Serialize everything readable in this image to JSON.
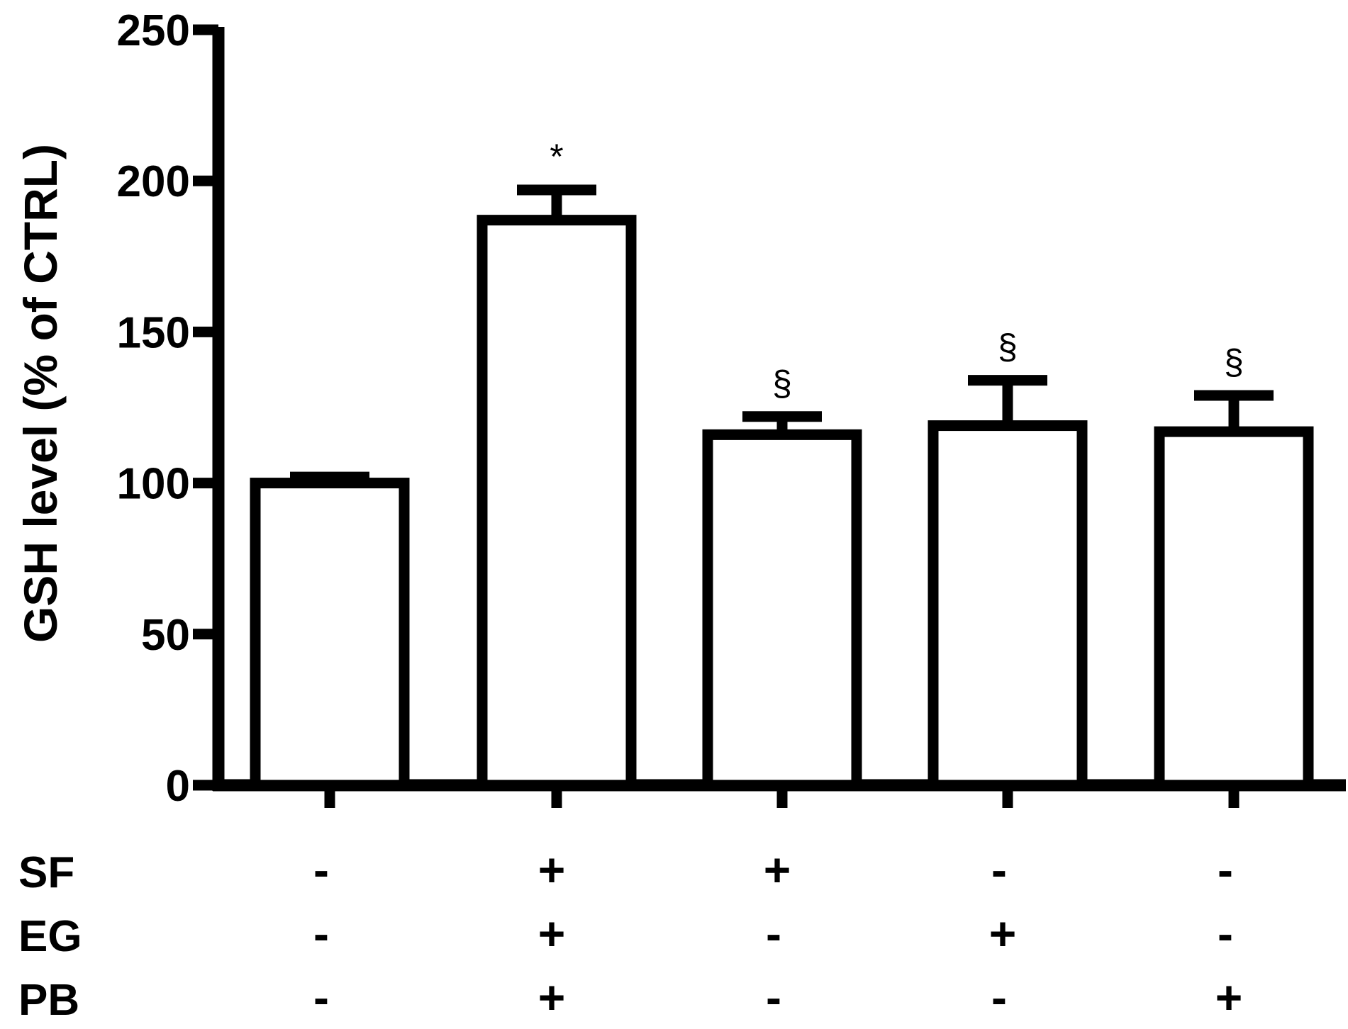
{
  "chart_data": {
    "type": "bar",
    "title": "",
    "xlabel": "",
    "ylabel": "GSH level (% of CTRL)",
    "ylim": [
      0,
      250
    ],
    "yticks": [
      0,
      50,
      100,
      150,
      200,
      250
    ],
    "grid": false,
    "legend": "none",
    "values": [
      100,
      187,
      116,
      119,
      117
    ],
    "errors": [
      2,
      10,
      6,
      15,
      12
    ],
    "annotations": [
      "",
      "*",
      "§",
      "§",
      "§"
    ],
    "treatment_rows": [
      {
        "label": "SF",
        "values": [
          "-",
          "+",
          "+",
          "-",
          "-"
        ]
      },
      {
        "label": "EG",
        "values": [
          "-",
          "+",
          "-",
          "+",
          "-"
        ]
      },
      {
        "label": "PB",
        "values": [
          "-",
          "+",
          "-",
          "-",
          "+"
        ]
      }
    ],
    "colors": {
      "bar_fill": "#ffffff",
      "stroke": "#000000"
    }
  }
}
